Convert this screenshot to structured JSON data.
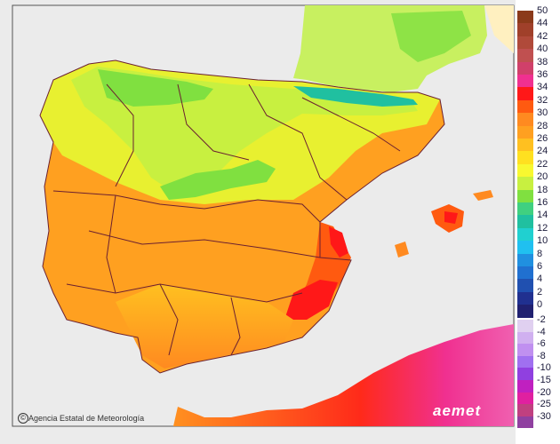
{
  "map": {
    "credit": "Agencia Estatal de Meteorología",
    "logo_text": "aemet",
    "colors": {
      "sea": "#ebebeb",
      "france": "#c8f060",
      "africa": "#ff9020",
      "border": "#6b2030"
    }
  },
  "legend": {
    "positive": [
      {
        "label": "50",
        "color": "#8b3a1a"
      },
      {
        "label": "44",
        "color": "#a0402a"
      },
      {
        "label": "42",
        "color": "#b04a3a"
      },
      {
        "label": "40",
        "color": "#c05050"
      },
      {
        "label": "38",
        "color": "#d0406a"
      },
      {
        "label": "36",
        "color": "#f03090"
      },
      {
        "label": "34",
        "color": "#ff1818"
      },
      {
        "label": "32",
        "color": "#ff5a10"
      },
      {
        "label": "30",
        "color": "#ff8a20"
      },
      {
        "label": "28",
        "color": "#ffa020"
      },
      {
        "label": "26",
        "color": "#ffc020"
      },
      {
        "label": "24",
        "color": "#ffe020"
      },
      {
        "label": "22",
        "color": "#f8f830"
      },
      {
        "label": "20",
        "color": "#c8f040"
      },
      {
        "label": "18",
        "color": "#80e040"
      },
      {
        "label": "16",
        "color": "#40d080"
      },
      {
        "label": "14",
        "color": "#20c0a0"
      },
      {
        "label": "12",
        "color": "#20d0d0"
      },
      {
        "label": "10",
        "color": "#20c0f0"
      },
      {
        "label": "8",
        "color": "#2090e0"
      },
      {
        "label": "6",
        "color": "#2070d0"
      },
      {
        "label": "4",
        "color": "#2050b0"
      },
      {
        "label": "2",
        "color": "#203090"
      },
      {
        "label": "0",
        "color": "#202070"
      }
    ],
    "negative": [
      {
        "label": "-2",
        "color": "#e0d0f0"
      },
      {
        "label": "-4",
        "color": "#d0b0f0"
      },
      {
        "label": "-6",
        "color": "#c090f0"
      },
      {
        "label": "-8",
        "color": "#a070f0"
      },
      {
        "label": "-10",
        "color": "#9040e0"
      },
      {
        "label": "-15",
        "color": "#c020c0"
      },
      {
        "label": "-20",
        "color": "#e020a0"
      },
      {
        "label": "-25",
        "color": "#c04080"
      },
      {
        "label": "-30",
        "color": "#9040a0"
      }
    ]
  }
}
